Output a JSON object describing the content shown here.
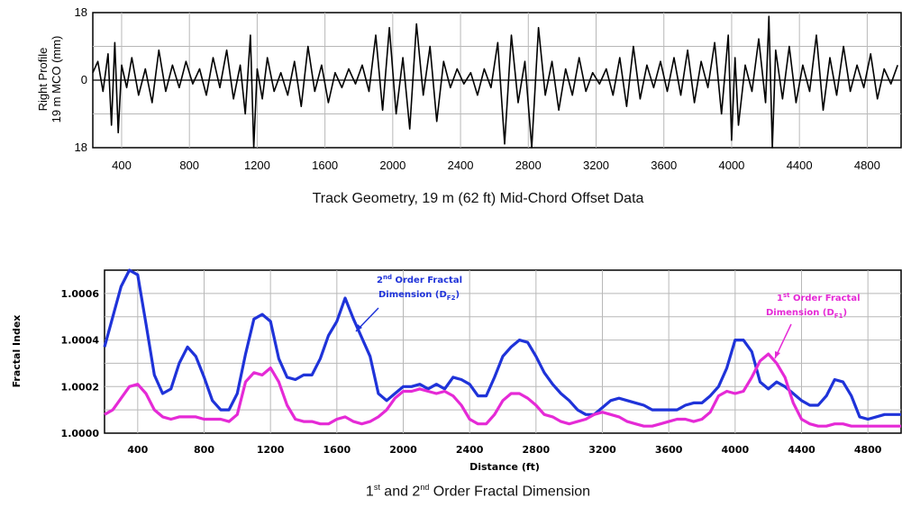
{
  "chart_data": [
    {
      "type": "line",
      "ylabel_line1": "Right Profile",
      "ylabel_line2": "19 m MCO (mm)",
      "caption": "Track Geometry, 19 m (62 ft)  Mid-Chord Offset Data",
      "xticks": [
        400,
        800,
        1200,
        1600,
        2000,
        2400,
        2800,
        3200,
        3600,
        4000,
        4400,
        4800
      ],
      "yticks": [
        18,
        0,
        -18
      ],
      "ytick_labels": [
        "18",
        "0",
        "18"
      ],
      "xlim": [
        230,
        5000
      ],
      "ylim": [
        -18,
        18
      ],
      "grid": true,
      "series": [
        {
          "color": "#000000",
          "x": [
            230,
            260,
            290,
            320,
            340,
            360,
            380,
            400,
            430,
            460,
            500,
            540,
            580,
            620,
            660,
            700,
            740,
            780,
            820,
            860,
            900,
            940,
            980,
            1020,
            1060,
            1100,
            1130,
            1160,
            1180,
            1200,
            1230,
            1260,
            1300,
            1340,
            1380,
            1420,
            1460,
            1500,
            1540,
            1580,
            1620,
            1660,
            1700,
            1740,
            1780,
            1820,
            1860,
            1900,
            1940,
            1980,
            2020,
            2060,
            2100,
            2140,
            2180,
            2220,
            2260,
            2300,
            2340,
            2380,
            2420,
            2460,
            2500,
            2540,
            2580,
            2620,
            2660,
            2700,
            2740,
            2780,
            2820,
            2860,
            2900,
            2940,
            2980,
            3020,
            3060,
            3100,
            3140,
            3180,
            3220,
            3260,
            3300,
            3340,
            3380,
            3420,
            3460,
            3500,
            3540,
            3580,
            3620,
            3660,
            3700,
            3740,
            3780,
            3820,
            3860,
            3900,
            3940,
            3980,
            4000,
            4020,
            4040,
            4080,
            4120,
            4160,
            4200,
            4220,
            4240,
            4260,
            4300,
            4340,
            4380,
            4420,
            4460,
            4500,
            4540,
            4580,
            4620,
            4660,
            4700,
            4740,
            4780,
            4820,
            4860,
            4900,
            4940,
            4980
          ],
          "y": [
            2,
            5,
            -3,
            7,
            -12,
            10,
            -14,
            4,
            -2,
            6,
            -4,
            3,
            -6,
            8,
            -3,
            4,
            -2,
            5,
            -1,
            3,
            -4,
            6,
            -2,
            8,
            -5,
            4,
            -9,
            12,
            -18,
            3,
            -5,
            6,
            -3,
            2,
            -4,
            5,
            -7,
            9,
            -3,
            4,
            -6,
            2,
            -2,
            3,
            -1,
            4,
            -3,
            12,
            -8,
            14,
            -9,
            6,
            -13,
            15,
            -4,
            9,
            -11,
            5,
            -2,
            3,
            -1,
            2,
            -4,
            3,
            -2,
            10,
            -17,
            12,
            -6,
            5,
            -18,
            14,
            -4,
            5,
            -8,
            3,
            -4,
            6,
            -3,
            2,
            -1,
            3,
            -4,
            6,
            -7,
            9,
            -5,
            4,
            -2,
            5,
            -3,
            6,
            -4,
            8,
            -6,
            5,
            -2,
            10,
            -9,
            12,
            -16,
            6,
            -12,
            4,
            -3,
            11,
            -6,
            17,
            -18,
            8,
            -5,
            9,
            -6,
            4,
            -3,
            12,
            -8,
            6,
            -4,
            9,
            -3,
            4,
            -2,
            7,
            -5,
            3,
            -1,
            4
          ]
        }
      ]
    },
    {
      "type": "line",
      "ylabel": "Fractal Index",
      "xlabel": "Distance (ft)",
      "caption_parts": [
        "1",
        "st",
        " and 2",
        "nd",
        " Order Fractal Dimension"
      ],
      "xticks": [
        400,
        800,
        1200,
        1600,
        2000,
        2400,
        2800,
        3200,
        3600,
        4000,
        4400,
        4800
      ],
      "xtick_labels": [
        "400",
        "800",
        "1200",
        "1600",
        "2000",
        "2400",
        "2800",
        "3200",
        "3600",
        "4000",
        "4400",
        "4800"
      ],
      "yticks": [
        1.0,
        1.0002,
        1.0004,
        1.0006
      ],
      "ytick_labels": [
        "1.0000",
        "1.0002",
        "1.0004",
        "1.0006"
      ],
      "xlim": [
        200,
        5000
      ],
      "ylim": [
        1.0,
        1.0007
      ],
      "grid": true,
      "series": [
        {
          "color": "#1f33d9",
          "label_parts": [
            "2",
            "nd",
            " Order Fractal",
            "Dimension (D",
            "F2",
            ")"
          ],
          "x": [
            200,
            250,
            300,
            350,
            400,
            450,
            500,
            550,
            600,
            650,
            700,
            750,
            800,
            850,
            900,
            950,
            1000,
            1050,
            1100,
            1150,
            1200,
            1250,
            1300,
            1350,
            1400,
            1450,
            1500,
            1550,
            1600,
            1650,
            1700,
            1750,
            1800,
            1850,
            1900,
            1950,
            2000,
            2050,
            2100,
            2150,
            2200,
            2250,
            2300,
            2350,
            2400,
            2450,
            2500,
            2550,
            2600,
            2650,
            2700,
            2750,
            2800,
            2850,
            2900,
            2950,
            3000,
            3050,
            3100,
            3150,
            3200,
            3250,
            3300,
            3350,
            3400,
            3450,
            3500,
            3550,
            3600,
            3650,
            3700,
            3750,
            3800,
            3850,
            3900,
            3950,
            4000,
            4050,
            4100,
            4150,
            4200,
            4250,
            4300,
            4350,
            4400,
            4450,
            4500,
            4550,
            4600,
            4650,
            4700,
            4750,
            4800,
            4850,
            4900,
            4950,
            5000
          ],
          "y": [
            1.00037,
            1.0005,
            1.00063,
            1.0007,
            1.00068,
            1.00047,
            1.00025,
            1.00017,
            1.00019,
            1.0003,
            1.00037,
            1.00033,
            1.00024,
            1.00014,
            1.0001,
            1.0001,
            1.00017,
            1.00034,
            1.00049,
            1.00051,
            1.00048,
            1.00032,
            1.00024,
            1.00023,
            1.00025,
            1.00025,
            1.00032,
            1.00042,
            1.00048,
            1.00058,
            1.00049,
            1.00041,
            1.00033,
            1.00017,
            1.00014,
            1.00017,
            1.0002,
            1.0002,
            1.00021,
            1.00019,
            1.00021,
            1.00019,
            1.00024,
            1.00023,
            1.00021,
            1.00016,
            1.00016,
            1.00024,
            1.00033,
            1.00037,
            1.0004,
            1.00039,
            1.00033,
            1.00026,
            1.00021,
            1.00017,
            1.00014,
            1.0001,
            1.00008,
            1.00008,
            1.00011,
            1.00014,
            1.00015,
            1.00014,
            1.00013,
            1.00012,
            1.0001,
            1.0001,
            1.0001,
            1.0001,
            1.00012,
            1.00013,
            1.00013,
            1.00016,
            1.0002,
            1.00028,
            1.0004,
            1.0004,
            1.00035,
            1.00022,
            1.00019,
            1.00022,
            1.0002,
            1.00017,
            1.00014,
            1.00012,
            1.00012,
            1.00016,
            1.00023,
            1.00022,
            1.00016,
            1.00007,
            1.00006,
            1.00007,
            1.00008,
            1.00008,
            1.00008
          ]
        },
        {
          "color": "#e52ad6",
          "label_parts": [
            "1",
            "st",
            " Order Fractal",
            "Dimension (D",
            "F1",
            ")"
          ],
          "x": [
            200,
            250,
            300,
            350,
            400,
            450,
            500,
            550,
            600,
            650,
            700,
            750,
            800,
            850,
            900,
            950,
            1000,
            1050,
            1100,
            1150,
            1200,
            1250,
            1300,
            1350,
            1400,
            1450,
            1500,
            1550,
            1600,
            1650,
            1700,
            1750,
            1800,
            1850,
            1900,
            1950,
            2000,
            2050,
            2100,
            2150,
            2200,
            2250,
            2300,
            2350,
            2400,
            2450,
            2500,
            2550,
            2600,
            2650,
            2700,
            2750,
            2800,
            2850,
            2900,
            2950,
            3000,
            3050,
            3100,
            3150,
            3200,
            3250,
            3300,
            3350,
            3400,
            3450,
            3500,
            3550,
            3600,
            3650,
            3700,
            3750,
            3800,
            3850,
            3900,
            3950,
            4000,
            4050,
            4100,
            4150,
            4200,
            4250,
            4300,
            4350,
            4400,
            4450,
            4500,
            4550,
            4600,
            4650,
            4700,
            4750,
            4800,
            4850,
            4900,
            4950,
            5000
          ],
          "y": [
            1.00008,
            1.0001,
            1.00015,
            1.0002,
            1.00021,
            1.00017,
            1.0001,
            1.00007,
            1.00006,
            1.00007,
            1.00007,
            1.00007,
            1.00006,
            1.00006,
            1.00006,
            1.00005,
            1.00008,
            1.00022,
            1.00026,
            1.00025,
            1.00028,
            1.00022,
            1.00012,
            1.00006,
            1.00005,
            1.00005,
            1.00004,
            1.00004,
            1.00006,
            1.00007,
            1.00005,
            1.00004,
            1.00005,
            1.00007,
            1.0001,
            1.00015,
            1.00018,
            1.00018,
            1.00019,
            1.00018,
            1.00017,
            1.00018,
            1.00016,
            1.00012,
            1.00006,
            1.00004,
            1.00004,
            1.00008,
            1.00014,
            1.00017,
            1.00017,
            1.00015,
            1.00012,
            1.00008,
            1.00007,
            1.00005,
            1.00004,
            1.00005,
            1.00006,
            1.00008,
            1.00009,
            1.00008,
            1.00007,
            1.00005,
            1.00004,
            1.00003,
            1.00003,
            1.00004,
            1.00005,
            1.00006,
            1.00006,
            1.00005,
            1.00006,
            1.00009,
            1.00016,
            1.00018,
            1.00017,
            1.00018,
            1.00024,
            1.00031,
            1.00034,
            1.0003,
            1.00024,
            1.00013,
            1.00006,
            1.00004,
            1.00003,
            1.00003,
            1.00004,
            1.00004,
            1.00003,
            1.00003,
            1.00003,
            1.00003,
            1.00003,
            1.00003,
            1.00003
          ]
        }
      ]
    }
  ]
}
